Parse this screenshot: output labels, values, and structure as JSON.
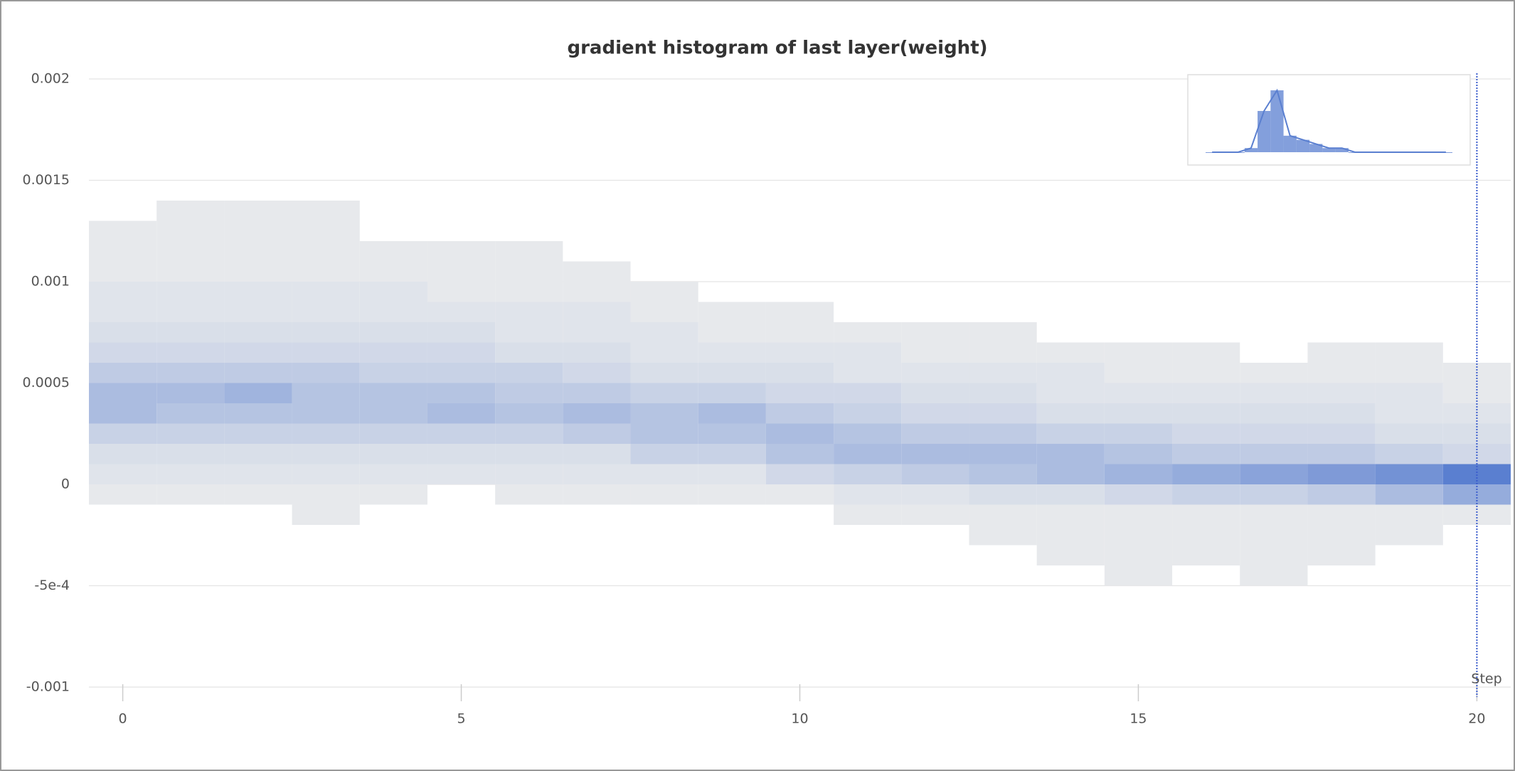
{
  "chart_data": {
    "type": "histogram",
    "title": "gradient histogram of last layer(weight)",
    "x_label": "Step",
    "x": [
      0,
      1,
      2,
      3,
      4,
      5,
      6,
      7,
      8,
      9,
      10,
      11,
      12,
      13,
      14,
      15,
      16,
      17,
      18,
      19,
      20
    ],
    "bins": [
      -0.0005,
      -0.0004,
      -0.0003,
      -0.0002,
      -0.0001,
      0,
      0.0001,
      0.0002,
      0.0003,
      0.0004,
      0.0005,
      0.0006,
      0.0007,
      0.0008,
      0.0009,
      0.001,
      0.0011,
      0.0012,
      0.0013,
      0.0014
    ],
    "counts": [
      [
        0,
        0,
        0,
        0,
        1,
        2,
        3,
        5,
        8,
        8,
        6,
        4,
        3,
        2,
        2,
        1,
        1,
        1,
        0
      ],
      [
        0,
        0,
        0,
        0,
        1,
        2,
        3,
        5,
        7,
        8,
        6,
        4,
        3,
        2,
        2,
        1,
        1,
        1,
        1
      ],
      [
        0,
        0,
        0,
        0,
        1,
        2,
        3,
        5,
        7,
        9,
        6,
        4,
        3,
        2,
        2,
        1,
        1,
        1,
        1
      ],
      [
        0,
        0,
        0,
        1,
        1,
        2,
        3,
        5,
        7,
        7,
        6,
        4,
        3,
        2,
        2,
        1,
        1,
        1,
        1
      ],
      [
        0,
        0,
        0,
        0,
        1,
        2,
        3,
        5,
        7,
        7,
        5,
        4,
        3,
        2,
        2,
        1,
        1,
        0,
        0
      ],
      [
        0,
        0,
        0,
        0,
        0,
        2,
        3,
        5,
        8,
        7,
        5,
        4,
        3,
        2,
        1,
        1,
        1,
        0,
        0
      ],
      [
        0,
        0,
        0,
        0,
        1,
        2,
        3,
        5,
        7,
        6,
        5,
        3,
        2,
        2,
        1,
        1,
        1,
        0,
        0
      ],
      [
        0,
        0,
        0,
        0,
        1,
        2,
        3,
        6,
        8,
        6,
        4,
        3,
        2,
        2,
        1,
        1,
        0,
        0,
        0
      ],
      [
        0,
        0,
        0,
        0,
        1,
        2,
        5,
        7,
        7,
        5,
        3,
        2,
        2,
        1,
        1,
        0,
        0,
        0,
        0
      ],
      [
        0,
        0,
        0,
        0,
        1,
        2,
        5,
        7,
        8,
        5,
        3,
        2,
        1,
        1,
        0,
        0,
        0,
        0,
        0
      ],
      [
        0,
        0,
        0,
        0,
        1,
        4,
        7,
        8,
        6,
        4,
        3,
        2,
        1,
        1,
        0,
        0,
        0,
        0,
        0
      ],
      [
        0,
        0,
        0,
        1,
        2,
        5,
        8,
        7,
        5,
        4,
        2,
        2,
        1,
        0,
        0,
        0,
        0,
        0,
        0
      ],
      [
        0,
        0,
        0,
        1,
        2,
        6,
        8,
        6,
        4,
        3,
        2,
        1,
        1,
        0,
        0,
        0,
        0,
        0,
        0
      ],
      [
        0,
        0,
        1,
        1,
        3,
        7,
        8,
        6,
        4,
        3,
        2,
        1,
        1,
        0,
        0,
        0,
        0,
        0,
        0
      ],
      [
        0,
        1,
        1,
        1,
        3,
        8,
        8,
        5,
        3,
        2,
        2,
        1,
        0,
        0,
        0,
        0,
        0,
        0,
        0
      ],
      [
        1,
        1,
        1,
        1,
        4,
        9,
        7,
        5,
        3,
        2,
        1,
        1,
        0,
        0,
        0,
        0,
        0,
        0,
        0
      ],
      [
        0,
        1,
        1,
        1,
        5,
        10,
        6,
        4,
        3,
        2,
        1,
        1,
        0,
        0,
        0,
        0,
        0,
        0,
        0
      ],
      [
        1,
        1,
        1,
        1,
        5,
        11,
        6,
        4,
        3,
        2,
        1,
        0,
        0,
        0,
        0,
        0,
        0,
        0,
        0
      ],
      [
        0,
        1,
        1,
        1,
        6,
        12,
        6,
        4,
        3,
        2,
        1,
        1,
        0,
        0,
        0,
        0,
        0,
        0,
        0
      ],
      [
        0,
        0,
        1,
        1,
        8,
        13,
        5,
        3,
        2,
        2,
        1,
        1,
        0,
        0,
        0,
        0,
        0,
        0,
        0
      ],
      [
        0,
        0,
        0,
        1,
        10,
        15,
        4,
        3,
        2,
        1,
        1,
        0,
        0,
        0,
        0,
        0,
        0,
        0,
        0
      ]
    ],
    "color": "#5a7fd0",
    "empty_color": "#ebeced",
    "xlim": [
      -0.5,
      20.5
    ],
    "xticks": [
      0,
      5,
      10,
      15,
      20
    ],
    "ylim": [
      -0.001,
      0.002
    ],
    "yticks": [
      -0.001,
      {
        "value": -0.0005,
        "label": "-5e-4"
      },
      0,
      0.0005,
      0.001,
      0.0015,
      0.002
    ],
    "grid": true
  }
}
